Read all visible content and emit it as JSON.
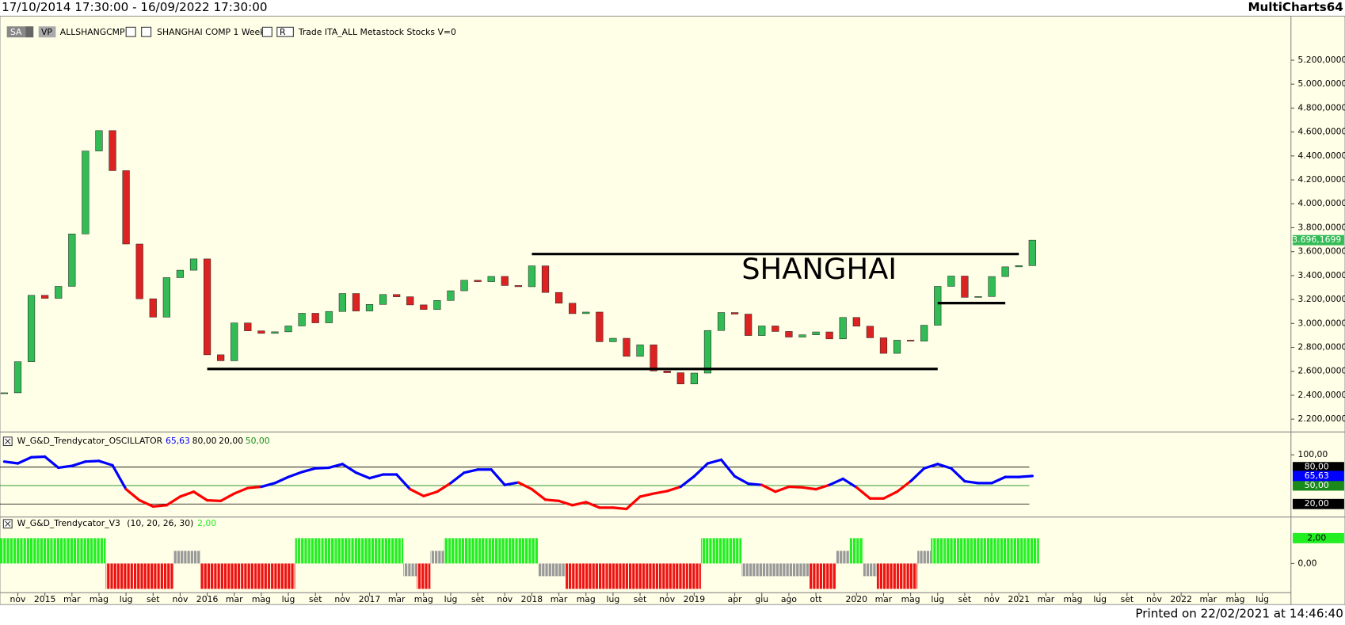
{
  "header": {
    "range": "17/10/2014 17:30:00 - 16/09/2022 17:30:00",
    "app": "MultiCharts64"
  },
  "footer": "Printed on 22/02/2021 at 14:46:40",
  "toolbar": {
    "buttons": [
      "SA",
      "VP"
    ],
    "symbol": "ALLSHANGCMP",
    "instrument": "SHANGHAI COMP  1 Week",
    "r": "R",
    "details": "Trade  ITA_ALL  Metastock  Stocks  V=0"
  },
  "chart_data": [
    {
      "type": "candle",
      "up_color": "#33bb55",
      "down_color": "#dd2222",
      "values": [
        2420,
        2680,
        3235,
        3210,
        3310,
        3748,
        4441,
        4612,
        4277,
        3664,
        3206,
        3053,
        3383,
        3445,
        3539,
        2738,
        2688,
        3004,
        2938,
        2917,
        2930,
        2979,
        3085,
        3005,
        3100,
        3250,
        3104,
        3159,
        3242,
        3223,
        3155,
        3117,
        3192,
        3273,
        3361,
        3349,
        3393,
        3317,
        3307,
        3481,
        3259,
        3169,
        3082,
        3095,
        2847,
        2876,
        2725,
        2821,
        2603,
        2588,
        2494,
        2585,
        2941,
        3091,
        3078,
        2899,
        2979,
        2933,
        2886,
        2905,
        2929,
        2871,
        3050,
        2977,
        2880,
        2750,
        2860,
        2852,
        2985,
        3310,
        3396,
        3218,
        3225,
        3392,
        3473,
        3483,
        3696.1699,
        null,
        null,
        null,
        null,
        null,
        null,
        null,
        null,
        null,
        null,
        null,
        null,
        null,
        null,
        null,
        null,
        null,
        null
      ],
      "last_label": "3.696,1699",
      "ylim": [
        2100,
        5490
      ],
      "yticks": [
        {
          "value": 2200,
          "label": "2.200,0000"
        },
        {
          "value": 2400,
          "label": "2.400,0000"
        },
        {
          "value": 2600,
          "label": "2.600,0000"
        },
        {
          "value": 2800,
          "label": "2.800,0000"
        },
        {
          "value": 3000,
          "label": "3.000,0000"
        },
        {
          "value": 3200,
          "label": "3.200,0000"
        },
        {
          "value": 3400,
          "label": "3.400,0000"
        },
        {
          "value": 3600,
          "label": "3.600,0000"
        },
        {
          "value": 3800,
          "label": "3.800,0000"
        },
        {
          "value": 4000,
          "label": "4.000,0000"
        },
        {
          "value": 4200,
          "label": "4.200,0000"
        },
        {
          "value": 4400,
          "label": "4.400,0000"
        },
        {
          "value": 4600,
          "label": "4.600,0000"
        },
        {
          "value": 4800,
          "label": "4.800,0000"
        },
        {
          "value": 5000,
          "label": "5.000,0000"
        },
        {
          "value": 5200,
          "label": "5.200,0000"
        }
      ],
      "annotation": "SHANGHAI",
      "levels": [
        {
          "value": 2620,
          "from": 15,
          "to": 69
        },
        {
          "value": 3580,
          "from": 39,
          "to": 75
        },
        {
          "value": 3170,
          "from": 69,
          "to": 74
        }
      ]
    },
    {
      "type": "oscillator",
      "title": "W_G&D_Trendycator_OSCILLATOR",
      "up_color": "#0000ff",
      "down_color": "#ff0000",
      "values": [
        89,
        86,
        96,
        97,
        79,
        82,
        89,
        90,
        83,
        44,
        26,
        16,
        18,
        32,
        40,
        26,
        25,
        37,
        46,
        48,
        54,
        64,
        72,
        78,
        79,
        85,
        71,
        62,
        68,
        68,
        44,
        33,
        40,
        54,
        71,
        76,
        76,
        51,
        55,
        44,
        27,
        25,
        18,
        23,
        14,
        14,
        12,
        32,
        37,
        41,
        48,
        65,
        86,
        92,
        65,
        53,
        51,
        40,
        48,
        47,
        44,
        51,
        61,
        47,
        29,
        29,
        40,
        57,
        78,
        85,
        78,
        57,
        54,
        54,
        64,
        64,
        65.63,
        null,
        null,
        null,
        null,
        null,
        null,
        null,
        null,
        null,
        null,
        null,
        null,
        null,
        null,
        null,
        null,
        null,
        null
      ],
      "current": {
        "value": 65.63,
        "label": "65,63"
      },
      "levels": [
        {
          "value": 80,
          "label": "80,00",
          "color": "#000000"
        },
        {
          "value": 20,
          "label": "20,00",
          "color": "#000000"
        },
        {
          "value": 50,
          "label": "50,00",
          "color": "#1a8a1a"
        }
      ],
      "ylim": [
        3,
        133
      ],
      "yticks": [
        {
          "value": 100,
          "label": "100,00"
        }
      ]
    },
    {
      "type": "histogram",
      "title": "W_G&D_Trendycator_V3",
      "params": "(10, 20, 26, 30)",
      "colors": {
        "2": "#22ee22",
        "1": "#999999",
        "-1": "#999999",
        "-2": "#ee1111"
      },
      "values": [
        2,
        2,
        2,
        2,
        2,
        2,
        2,
        2,
        -2,
        -2,
        -2,
        -2,
        -2,
        1,
        1,
        -2,
        -2,
        -2,
        -2,
        -2,
        -2,
        -2,
        2,
        2,
        2,
        2,
        2,
        2,
        2,
        2,
        -1,
        -2,
        1,
        2,
        2,
        2,
        2,
        2,
        2,
        2,
        -1,
        -1,
        -2,
        -2,
        -2,
        -2,
        -2,
        -2,
        -2,
        -2,
        -2,
        -2,
        2,
        2,
        2,
        -1,
        -1,
        -1,
        -1,
        -1,
        -2,
        -2,
        1,
        2,
        -1,
        -2,
        -2,
        -2,
        1,
        2,
        2,
        2,
        2,
        2,
        2,
        2,
        2,
        null,
        null,
        null,
        null,
        null,
        null,
        null,
        null,
        null,
        null,
        null,
        null,
        null,
        null,
        null,
        null,
        null,
        null
      ],
      "current": {
        "value": 2,
        "label": "2,00"
      },
      "ylim": [
        -2.3,
        3.6
      ],
      "yticks": [
        {
          "value": 0,
          "label": "0,00"
        }
      ],
      "categories": [
        null,
        "nov",
        null,
        "2015",
        null,
        "mar",
        null,
        "mag",
        null,
        "lug",
        null,
        "set",
        null,
        "nov",
        null,
        "2016",
        null,
        "mar",
        null,
        "mag",
        null,
        "lug",
        null,
        "set",
        null,
        "nov",
        null,
        "2017",
        null,
        "mar",
        null,
        "mag",
        null,
        "lug",
        null,
        "set",
        null,
        "nov",
        null,
        "2018",
        null,
        "mar",
        null,
        "mag",
        null,
        "lug",
        null,
        "set",
        null,
        "nov",
        null,
        "2019",
        null,
        null,
        "apr",
        null,
        "giu",
        null,
        "ago",
        null,
        "ott",
        null,
        null,
        "2020",
        null,
        "mar",
        null,
        "mag",
        null,
        "lug",
        null,
        "set",
        null,
        "nov",
        null,
        "2021",
        null,
        "mar",
        null,
        "mag",
        null,
        "lug",
        null,
        "set",
        null,
        "nov",
        null,
        "2022",
        null,
        "mar",
        null,
        "mag",
        null,
        "lug",
        null
      ]
    }
  ]
}
